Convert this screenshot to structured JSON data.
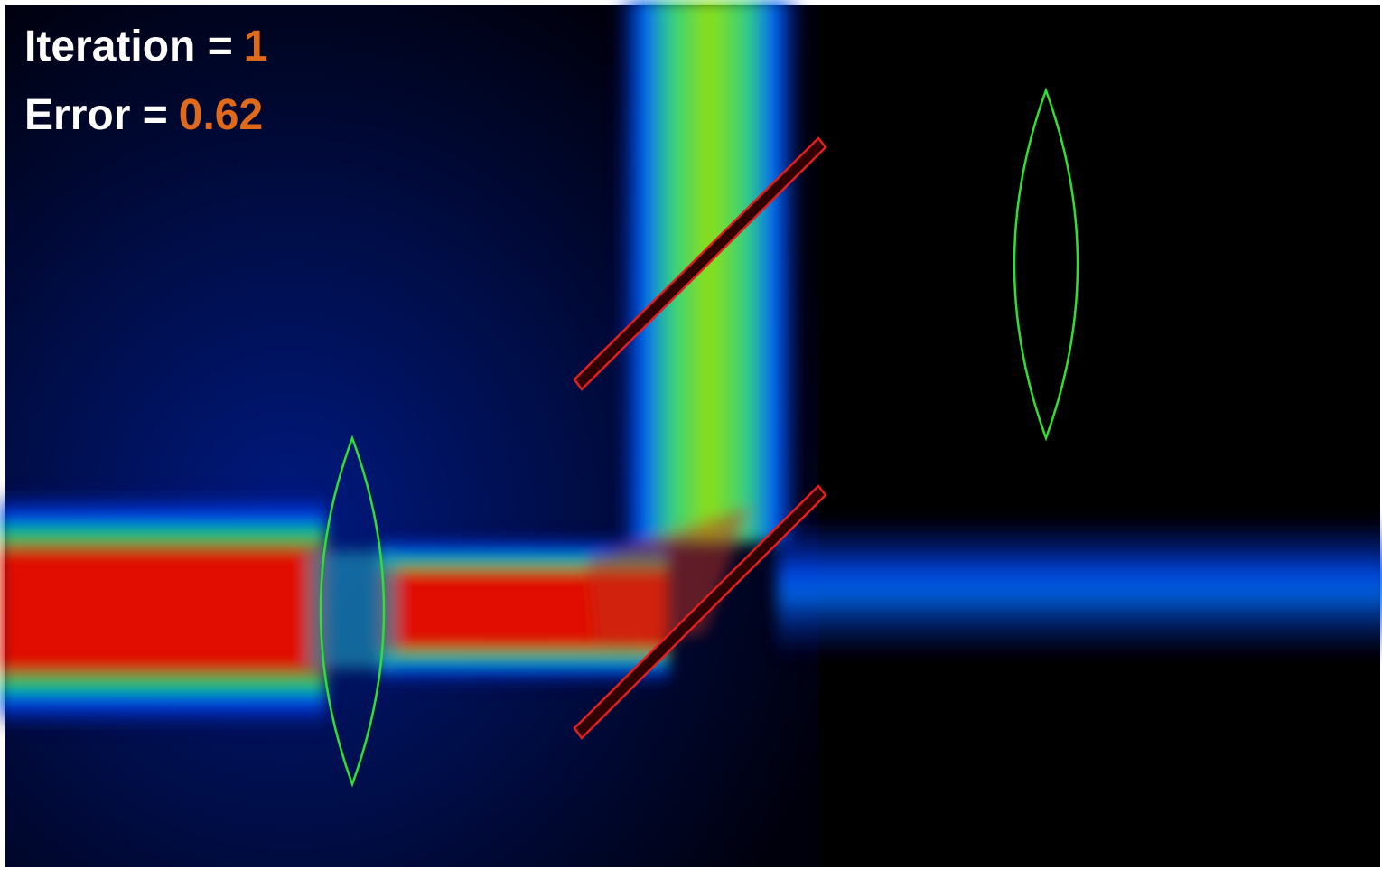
{
  "overlay": {
    "iteration": {
      "label": "Iteration =",
      "value": 1
    },
    "error": {
      "label": "Error =",
      "value": 0.62
    }
  }
}
